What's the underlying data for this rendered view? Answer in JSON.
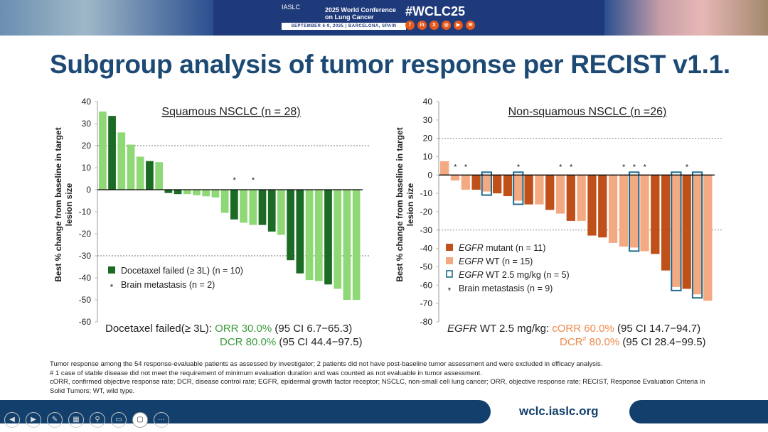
{
  "header": {
    "org": "IASLC",
    "conference": "2025 World Conference on Lung Cancer",
    "dates": "SEPTEMBER 6-9, 2025 | BARCELONA, SPAIN",
    "hashtag": "#WCLC25",
    "socials": [
      "facebook",
      "linkedin",
      "x",
      "instagram",
      "youtube",
      "wechat"
    ],
    "social_glyphs": [
      "f",
      "in",
      "X",
      "◎",
      "▶",
      "✉"
    ]
  },
  "title": "Subgroup analysis of tumor response per RECIST v1.1.",
  "chart_data": [
    {
      "type": "bar",
      "title": "Squamous NSCLC (n = 28)",
      "ylabel": "Best % change from baseline in target lesion size",
      "ylim": [
        -60,
        40
      ],
      "yticks": [
        40,
        30,
        20,
        10,
        0,
        -10,
        -20,
        -30,
        -40,
        -50,
        -60
      ],
      "reference_lines": [
        20,
        -30
      ],
      "grid": false,
      "values": [
        35.5,
        33.5,
        26,
        20.5,
        15,
        13,
        12.5,
        -1.5,
        -2,
        -2,
        -2.5,
        -3,
        -3.5,
        -10.5,
        -13.5,
        -15,
        -16,
        -16,
        -19,
        -20.5,
        -32,
        -38,
        -41,
        -41.5,
        -43,
        -45,
        -50,
        -50
      ],
      "group": [
        "o",
        "d",
        "o",
        "o",
        "o",
        "d",
        "o",
        "d",
        "d",
        "o",
        "o",
        "o",
        "o",
        "o",
        "d",
        "o",
        "o",
        "d",
        "d",
        "o",
        "d",
        "d",
        "o",
        "o",
        "d",
        "o",
        "o",
        "o"
      ],
      "brain_met": [
        14,
        16
      ],
      "colors": {
        "d": "#1b6b25",
        "o": "#8ed876"
      },
      "legend": [
        {
          "key": "d",
          "label": "Docetaxel failed (≥ 3L) (n = 10)"
        },
        {
          "key": "star",
          "label": "Brain metastasis (n = 2)"
        }
      ],
      "legend_position": "bottom-left"
    },
    {
      "type": "bar",
      "title": "Non-squamous NSCLC (n =26)",
      "ylabel": "Best % change from baseline in target lesion size",
      "ylim": [
        -80,
        40
      ],
      "yticks": [
        40,
        30,
        20,
        10,
        0,
        -10,
        -20,
        -30,
        -40,
        -50,
        -60,
        -70,
        -80
      ],
      "reference_lines": [
        20,
        -30
      ],
      "grid": false,
      "values": [
        7.5,
        -3,
        -8,
        -8,
        -9,
        -10,
        -11.5,
        -14,
        -16,
        -16,
        -19,
        -21,
        -25,
        -25,
        -33,
        -34,
        -37,
        -39,
        -39.5,
        -41.5,
        -43,
        -52,
        -61,
        -62,
        -65,
        -68.5
      ],
      "group": [
        "w",
        "w",
        "w",
        "m",
        "w",
        "m",
        "m",
        "w",
        "m",
        "w",
        "m",
        "w",
        "m",
        "w",
        "m",
        "m",
        "w",
        "w",
        "w",
        "w",
        "m",
        "m",
        "w",
        "m",
        "w",
        "w"
      ],
      "boxed": [
        4,
        7,
        18,
        22,
        24
      ],
      "brain_met": [
        1,
        2,
        7,
        11,
        12,
        17,
        18,
        19,
        23
      ],
      "colors": {
        "m": "#bf5019",
        "w": "#f3aa82",
        "box": "#1e6a8c"
      },
      "legend": [
        {
          "key": "m",
          "label_italic": "EGFR",
          "label": " mutant (n = 11)"
        },
        {
          "key": "w",
          "label_italic": "EGFR",
          "label": " WT (n = 15)"
        },
        {
          "key": "box",
          "label_italic": "EGFR",
          "label": " WT 2.5 mg/kg (n = 5)"
        },
        {
          "key": "star",
          "label_italic": "",
          "label": "Brain metastasis (n = 9)"
        }
      ],
      "legend_position": "bottom-left"
    }
  ],
  "stats": {
    "left": {
      "label": "Docetaxel failed(≥ 3L):",
      "orr": "ORR 30.0%",
      "orr_ci": "(95 CI 6.7−65.3)",
      "dcr": "DCR 80.0%",
      "dcr_ci": "(95 CI 44.4−97.5)"
    },
    "right": {
      "label_italic": "EGFR",
      "label": " WT 2.5 mg/kg:",
      "orr": "cORR 60.0%",
      "orr_ci": "(95 CI 14.7−94.7)",
      "dcr": "DCR",
      "dcr_sup": "#",
      "dcr_val": " 80.0%",
      "dcr_ci": "(95 CI 28.4−99.5)"
    }
  },
  "notes": [
    "Tumor response among the 54 response-evaluable patients as assessed by investigator; 2 patients did not have post-baseline tumor assessment and were excluded in efficacy analysis.",
    "# 1 case of stable disease did not meet the requirement of minimum evaluation duration and was counted as not evaluable in tumor assessment.",
    "cORR, confirmed objective response rate; DCR, disease control rate; EGFR, epidermal growth factor receptor; NSCLC, non-small cell lung cancer; ORR, objective response rate; RECIST, Response Evaluation Criteria in Solid Tumors; WT, wild type."
  ],
  "footer": {
    "url": "wclc.iaslc.org",
    "controls": [
      "previous",
      "next",
      "pen",
      "slides",
      "zoom",
      "subtitles",
      "camera",
      "more"
    ],
    "control_glyphs": [
      "◀",
      "▶",
      "✎",
      "▦",
      "⚲",
      "▭",
      "▢",
      "···"
    ]
  }
}
